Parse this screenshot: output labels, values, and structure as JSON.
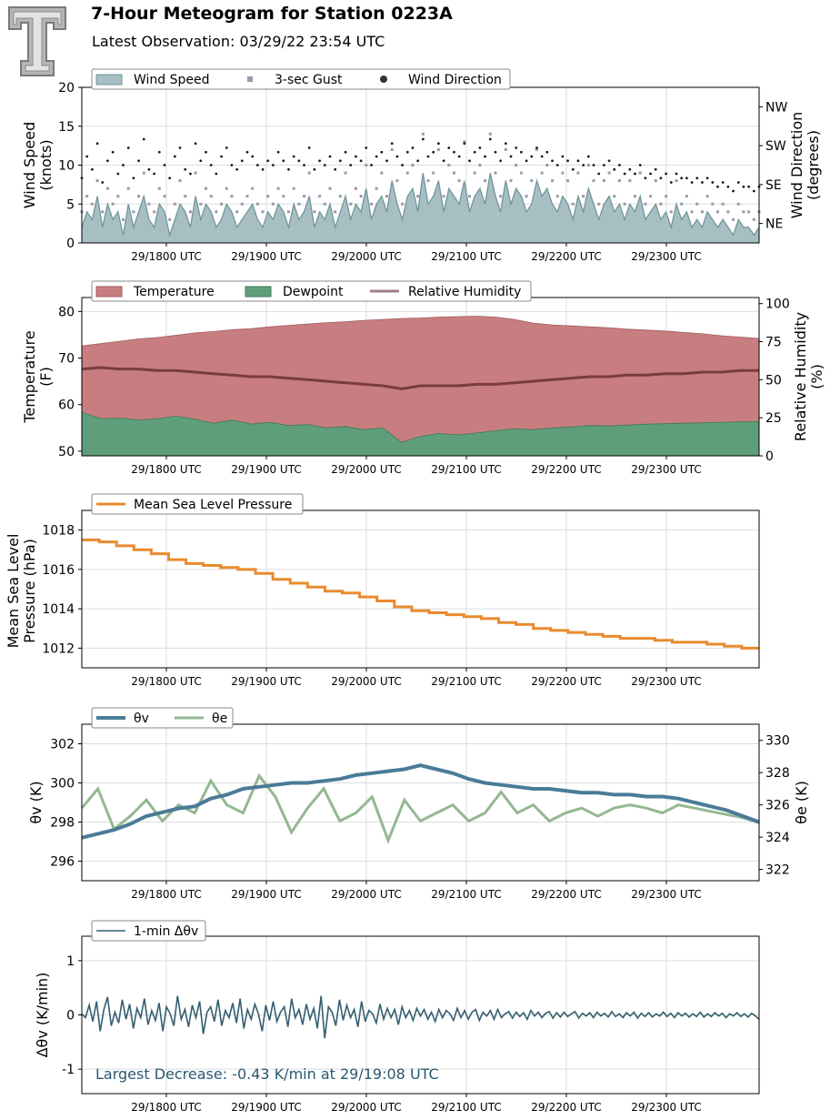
{
  "header": {
    "title": "7-Hour Meteogram for Station 0223A",
    "subtitle": "Latest Observation: 03/29/22 23:54 UTC"
  },
  "x_ticks": [
    "29/1800 UTC",
    "29/1900 UTC",
    "29/2000 UTC",
    "29/2100 UTC",
    "29/2200 UTC",
    "29/2300 UTC"
  ],
  "chart_data": [
    {
      "type": "area",
      "name": "wind",
      "ylabel": [
        "Wind Speed",
        "(knots)"
      ],
      "ylabel2": [
        "Wind Direction",
        "(degrees)"
      ],
      "ylim": [
        0,
        20
      ],
      "yticks": [
        0,
        5,
        10,
        15,
        20
      ],
      "ylim2": [
        0,
        360
      ],
      "yticks2": [
        {
          "value": 45,
          "label": "NE"
        },
        {
          "value": 135,
          "label": "SE"
        },
        {
          "value": 225,
          "label": "SW"
        },
        {
          "value": 315,
          "label": "NW"
        }
      ],
      "legend": [
        "Wind Speed",
        "3-sec Gust",
        "Wind Direction"
      ],
      "series": [
        {
          "name": "Wind Speed",
          "values": [
            2,
            4,
            3,
            6,
            2,
            5,
            3,
            4,
            1,
            5,
            2,
            4,
            6,
            3,
            2,
            5,
            4,
            1,
            3,
            5,
            4,
            2,
            6,
            3,
            5,
            4,
            2,
            3,
            5,
            4,
            2,
            3,
            4,
            5,
            3,
            2,
            4,
            3,
            5,
            4,
            2,
            5,
            3,
            4,
            6,
            2,
            4,
            3,
            5,
            2,
            4,
            6,
            3,
            5,
            4,
            7,
            3,
            5,
            6,
            4,
            8,
            5,
            3,
            6,
            7,
            4,
            9,
            5,
            6,
            8,
            4,
            7,
            6,
            5,
            8,
            4,
            6,
            7,
            5,
            9,
            6,
            4,
            8,
            5,
            7,
            6,
            4,
            5,
            8,
            6,
            7,
            5,
            4,
            6,
            5,
            3,
            6,
            4,
            7,
            5,
            3,
            5,
            6,
            4,
            5,
            3,
            5,
            4,
            6,
            3,
            4,
            5,
            3,
            4,
            2,
            5,
            3,
            4,
            2,
            3,
            2,
            4,
            3,
            2,
            3,
            2,
            1,
            3,
            2,
            2,
            1,
            2
          ]
        },
        {
          "name": "3-sec Gust",
          "values": [
            4,
            6,
            5,
            8,
            4,
            7,
            5,
            6,
            3,
            7,
            4,
            6,
            9,
            5,
            4,
            7,
            6,
            3,
            5,
            8,
            6,
            4,
            9,
            5,
            7,
            6,
            4,
            5,
            7,
            6,
            4,
            5,
            6,
            7,
            5,
            4,
            6,
            5,
            7,
            6,
            4,
            7,
            5,
            6,
            9,
            4,
            6,
            5,
            7,
            4,
            6,
            9,
            5,
            7,
            6,
            10,
            5,
            7,
            9,
            6,
            12,
            8,
            5,
            9,
            10,
            6,
            14,
            8,
            9,
            12,
            6,
            10,
            9,
            8,
            13,
            6,
            9,
            10,
            8,
            14,
            9,
            6,
            12,
            8,
            10,
            9,
            6,
            8,
            12,
            9,
            10,
            8,
            6,
            9,
            8,
            5,
            9,
            6,
            10,
            8,
            5,
            8,
            9,
            6,
            8,
            5,
            8,
            6,
            9,
            5,
            6,
            8,
            5,
            6,
            4,
            8,
            5,
            6,
            4,
            5,
            4,
            6,
            5,
            4,
            5,
            4,
            3,
            5,
            4,
            4,
            3,
            4
          ]
        },
        {
          "name": "Wind Direction",
          "values": [
            150,
            200,
            170,
            230,
            140,
            190,
            210,
            160,
            180,
            220,
            150,
            190,
            240,
            170,
            160,
            210,
            180,
            150,
            200,
            220,
            170,
            160,
            230,
            190,
            210,
            180,
            160,
            200,
            220,
            180,
            170,
            190,
            210,
            200,
            180,
            170,
            190,
            180,
            210,
            190,
            170,
            200,
            190,
            180,
            220,
            170,
            190,
            180,
            200,
            170,
            190,
            210,
            180,
            200,
            190,
            220,
            180,
            200,
            210,
            190,
            230,
            200,
            180,
            210,
            220,
            190,
            240,
            200,
            210,
            230,
            190,
            220,
            210,
            200,
            230,
            190,
            210,
            220,
            200,
            240,
            210,
            190,
            230,
            200,
            220,
            210,
            190,
            200,
            220,
            200,
            210,
            190,
            180,
            200,
            190,
            170,
            190,
            180,
            200,
            180,
            160,
            180,
            190,
            170,
            180,
            160,
            170,
            160,
            180,
            150,
            160,
            170,
            150,
            160,
            140,
            160,
            150,
            150,
            140,
            150,
            140,
            150,
            140,
            130,
            140,
            130,
            120,
            140,
            130,
            130,
            120,
            130
          ]
        }
      ]
    },
    {
      "type": "area",
      "name": "temperature",
      "ylabel": [
        "Temperature",
        "(F)"
      ],
      "ylabel2": [
        "Relative Humidity",
        "(%)"
      ],
      "ylim": [
        49,
        83
      ],
      "yticks": [
        50,
        60,
        70,
        80
      ],
      "ylim2": [
        0,
        104
      ],
      "yticks2": [
        0,
        25,
        50,
        75,
        100
      ],
      "legend": [
        "Temperature",
        "Dewpoint",
        "Relative Humidity"
      ],
      "series": [
        {
          "name": "Temperature",
          "values": [
            72.6,
            73.1,
            73.6,
            74.1,
            74.4,
            74.9,
            75.4,
            75.7,
            76.1,
            76.3,
            76.7,
            77.0,
            77.3,
            77.6,
            77.8,
            78.1,
            78.3,
            78.5,
            78.6,
            78.8,
            78.9,
            79.0,
            78.8,
            78.3,
            77.5,
            77.1,
            76.9,
            76.7,
            76.5,
            76.2,
            76.0,
            75.8,
            75.5,
            75.2,
            74.8,
            74.5,
            74.2
          ]
        },
        {
          "name": "Dewpoint",
          "values": [
            58.4,
            57.0,
            57.1,
            56.7,
            57.0,
            57.5,
            56.9,
            56.0,
            56.7,
            55.8,
            56.2,
            55.5,
            55.7,
            55.0,
            55.3,
            54.6,
            55.0,
            51.9,
            53.2,
            53.8,
            53.5,
            53.9,
            54.4,
            54.8,
            54.6,
            55.0,
            55.2,
            55.5,
            55.4,
            55.6,
            55.8,
            55.9,
            56.0,
            56.1,
            56.2,
            56.3,
            56.4
          ]
        },
        {
          "name": "Relative Humidity",
          "values": [
            57,
            58,
            57,
            57,
            56,
            56,
            55,
            54,
            53,
            52,
            52,
            51,
            50,
            49,
            48,
            47,
            46,
            44,
            46,
            46,
            46,
            47,
            47,
            48,
            49,
            50,
            51,
            52,
            52,
            53,
            53,
            54,
            54,
            55,
            55,
            56,
            56
          ]
        }
      ]
    },
    {
      "type": "line",
      "name": "pressure",
      "ylabel": [
        "Mean Sea Level",
        "Pressure (hPa)"
      ],
      "ylim": [
        1011.0,
        1019.0
      ],
      "yticks": [
        1012,
        1014,
        1016,
        1018
      ],
      "legend": [
        "Mean Sea Level Pressure"
      ],
      "series": [
        {
          "name": "Mean Sea Level Pressure",
          "values": [
            1017.5,
            1017.4,
            1017.2,
            1017.0,
            1016.8,
            1016.5,
            1016.3,
            1016.2,
            1016.1,
            1016.0,
            1015.8,
            1015.5,
            1015.3,
            1015.1,
            1014.9,
            1014.8,
            1014.6,
            1014.4,
            1014.1,
            1013.9,
            1013.8,
            1013.7,
            1013.6,
            1013.5,
            1013.3,
            1013.2,
            1013.0,
            1012.9,
            1012.8,
            1012.7,
            1012.6,
            1012.5,
            1012.5,
            1012.4,
            1012.3,
            1012.3,
            1012.2,
            1012.1,
            1012.0,
            1012.0
          ]
        }
      ]
    },
    {
      "type": "line",
      "name": "theta",
      "ylabel": "θv (K)",
      "ylabel2": "θe (K)",
      "ylim": [
        295.0,
        303.0
      ],
      "yticks": [
        296,
        298,
        300,
        302
      ],
      "ylim2": [
        321.3,
        331.0
      ],
      "yticks2": [
        322,
        324,
        326,
        328,
        330
      ],
      "legend": [
        "θv",
        "θe"
      ],
      "series": [
        {
          "name": "θv",
          "values": [
            297.2,
            297.4,
            297.6,
            297.9,
            298.3,
            298.5,
            298.7,
            298.8,
            299.2,
            299.4,
            299.7,
            299.8,
            299.9,
            300.0,
            300.0,
            300.1,
            300.2,
            300.4,
            300.5,
            300.6,
            300.7,
            300.9,
            300.7,
            300.5,
            300.2,
            300.0,
            299.9,
            299.8,
            299.7,
            299.7,
            299.6,
            299.5,
            299.5,
            299.4,
            299.4,
            299.3,
            299.3,
            299.2,
            299.0,
            298.8,
            298.6,
            298.3,
            298.0
          ]
        },
        {
          "name": "θe",
          "values": [
            325.8,
            327.0,
            324.5,
            325.3,
            326.3,
            325.0,
            326.0,
            325.5,
            327.5,
            326.0,
            325.5,
            327.8,
            326.5,
            324.3,
            325.8,
            327.0,
            325.0,
            325.5,
            326.5,
            323.8,
            326.3,
            325.0,
            325.5,
            326.0,
            325.0,
            325.5,
            326.8,
            325.5,
            326.0,
            325.0,
            325.5,
            325.8,
            325.3,
            325.8,
            326.0,
            325.8,
            325.5,
            326.0,
            325.8,
            325.6,
            325.4,
            325.2,
            324.9
          ]
        }
      ]
    },
    {
      "type": "line",
      "name": "delta",
      "ylabel": "Δθv (K/min)",
      "ylim": [
        -1.45,
        1.45
      ],
      "yticks": [
        -1,
        0,
        1
      ],
      "legend": [
        "1-min Δθv"
      ],
      "annotation": "Largest Decrease: -0.43 K/min at 29/19:08 UTC",
      "series": [
        {
          "name": "1-min Δθv",
          "values": [
            0.02,
            -0.05,
            0.18,
            -0.12,
            0.25,
            -0.3,
            0.1,
            0.33,
            -0.2,
            0.05,
            -0.15,
            0.28,
            -0.08,
            0.2,
            -0.25,
            0.12,
            -0.05,
            0.3,
            -0.18,
            0.08,
            -0.1,
            0.22,
            -0.3,
            0.15,
            0.02,
            -0.2,
            0.35,
            -0.08,
            0.1,
            -0.22,
            0.18,
            -0.05,
            0.25,
            -0.35,
            0.05,
            0.15,
            -0.12,
            0.28,
            -0.2,
            0.08,
            -0.05,
            0.22,
            -0.15,
            0.3,
            -0.25,
            0.1,
            -0.08,
            0.2,
            0.02,
            -0.3,
            0.18,
            -0.1,
            0.25,
            -0.12,
            0.05,
            0.15,
            -0.22,
            0.3,
            -0.05,
            0.1,
            -0.18,
            0.2,
            -0.08,
            0.12,
            -0.25,
            0.35,
            -0.43,
            0.15,
            0.05,
            -0.2,
            0.28,
            -0.1,
            0.18,
            -0.05,
            0.1,
            -0.22,
            0.25,
            -0.12,
            0.08,
            0.02,
            -0.15,
            0.2,
            -0.08,
            0.12,
            -0.05,
            0.1,
            -0.18,
            0.15,
            -0.05,
            0.08,
            -0.1,
            0.12,
            -0.02,
            0.1,
            -0.08,
            0.05,
            -0.12,
            0.1,
            -0.05,
            0.08,
            0.02,
            -0.1,
            0.12,
            -0.05,
            0.08,
            -0.08,
            0.05,
            0.1,
            -0.1,
            0.05,
            -0.02,
            0.08,
            -0.08,
            0.1,
            -0.05,
            0.02,
            0.06,
            -0.06,
            0.05,
            -0.03,
            0.04,
            -0.08,
            0.08,
            -0.02,
            0.05,
            -0.05,
            0.03,
            0.06,
            -0.06,
            0.04,
            -0.04,
            0.05,
            -0.03,
            0.02,
            0.06,
            -0.06,
            0.03,
            -0.02,
            0.04,
            -0.05,
            0.05,
            -0.02,
            0.03,
            -0.04,
            0.06,
            -0.03,
            0.02,
            -0.05,
            0.04,
            -0.02,
            0.05,
            -0.06,
            0.03,
            -0.03,
            0.04,
            -0.04,
            0.02,
            -0.02,
            0.05,
            -0.03,
            0.03,
            -0.05,
            0.04,
            -0.02,
            0.03,
            -0.04,
            0.02,
            -0.03,
            0.05,
            -0.04,
            0.02,
            -0.03,
            0.04,
            -0.02,
            0.03,
            -0.05,
            0.02,
            -0.02,
            0.04,
            -0.03,
            0.02,
            -0.04,
            0.03,
            -0.02,
            -0.08
          ]
        }
      ]
    }
  ],
  "colors": {
    "wind_fill": "#a7bfc3",
    "wind_line": "#6f969b",
    "gust": "#9c96ad",
    "direction": "#1a1a1a",
    "temp_fill": "#c87e80",
    "temp_line": "#a05c5e",
    "dew_fill": "#5f9e7a",
    "dew_line": "#3f7a56",
    "rh_line": "#7a3c3e",
    "rh_legend": "#a07c84",
    "pressure": "#e88b2e",
    "theta_v": "#4a7b97",
    "theta_e": "#93b892",
    "delta": "#355e71",
    "annotation": "#2a5872"
  }
}
